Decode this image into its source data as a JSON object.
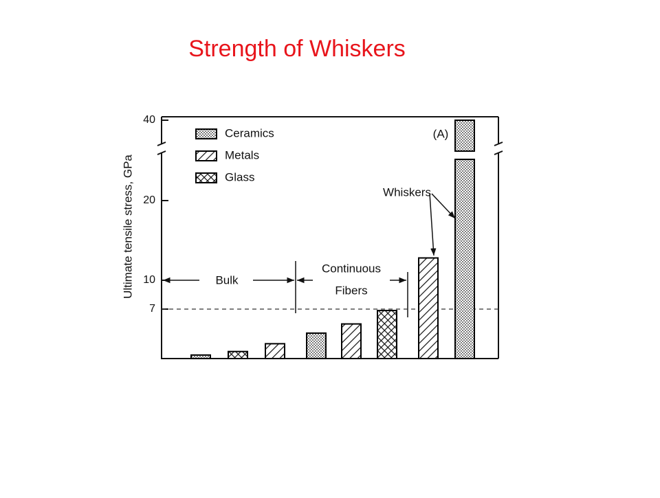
{
  "title": "Strength of Whiskers",
  "chart_data": {
    "type": "bar",
    "y_label": "Ultimate tensile stress, GPa",
    "categories": [
      null,
      null,
      null,
      null,
      null,
      null,
      null,
      null
    ],
    "series": [
      {
        "name": "Ceramics",
        "color": "#000000",
        "pattern": "dots",
        "values": [
          0.5,
          null,
          null,
          3.6,
          null,
          null,
          null,
          40
        ]
      },
      {
        "name": "Metals",
        "color": "#000000",
        "pattern": "hatch",
        "values": [
          null,
          null,
          2.1,
          null,
          4.9,
          null,
          12.8,
          null
        ]
      },
      {
        "name": "Glass",
        "color": "#000000",
        "pattern": "crosshatch",
        "values": [
          null,
          1.0,
          null,
          null,
          null,
          6.8,
          null,
          null
        ]
      }
    ],
    "ylim": [
      0,
      40
    ],
    "yticks": [
      7,
      10,
      20,
      40
    ],
    "hline": 7,
    "annotations": [
      "Bulk",
      "Continuous",
      "Fibers",
      "Whiskers",
      "(A)"
    ],
    "legend": "upper left"
  }
}
